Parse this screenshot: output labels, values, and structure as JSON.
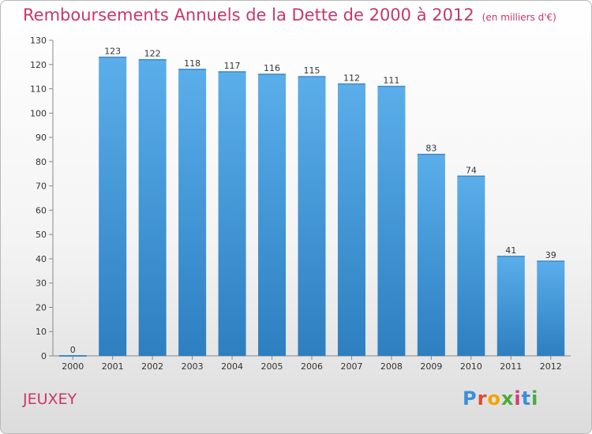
{
  "title": "Remboursements Annuels de la Dette de 2000 à 2012",
  "subtitle": "(en milliers d'€)",
  "commune": "JEUXEY",
  "logo": {
    "text": "Proxiti",
    "colors": [
      "#3b8fd9",
      "#e04a2a",
      "#f2a400",
      "#4aaa3c",
      "#d23c7a",
      "#3b8fd9",
      "#4aaa3c"
    ]
  },
  "colors": {
    "bar_top": "#5aaeea",
    "bar_bottom": "#2d7fc0",
    "title": "#c8366c"
  },
  "chart_data": {
    "type": "bar",
    "categories": [
      "2000",
      "2001",
      "2002",
      "2003",
      "2004",
      "2005",
      "2006",
      "2007",
      "2008",
      "2009",
      "2010",
      "2011",
      "2012"
    ],
    "values": [
      0,
      123,
      122,
      118,
      117,
      116,
      115,
      112,
      111,
      83,
      74,
      41,
      39
    ],
    "ylim": [
      0,
      130
    ],
    "yticks": [
      0,
      10,
      20,
      30,
      40,
      50,
      60,
      70,
      80,
      90,
      100,
      110,
      120,
      130
    ],
    "grid": false,
    "xlabel": "",
    "ylabel": ""
  }
}
